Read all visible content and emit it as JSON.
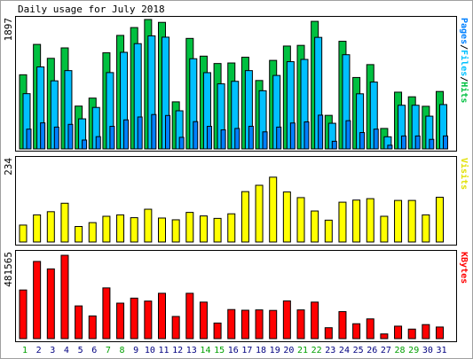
{
  "chart_data": [
    {
      "type": "bar",
      "title": "Daily usage for July 2018",
      "ylabel": "Pages/Files/Hits",
      "ylabel_parts": [
        "Pages",
        "/",
        "Files",
        "/",
        "Hits"
      ],
      "y_max_label": "1897",
      "ylim": [
        0,
        1897
      ],
      "categories": [
        "1",
        "2",
        "3",
        "4",
        "5",
        "6",
        "7",
        "8",
        "9",
        "10",
        "11",
        "12",
        "13",
        "14",
        "15",
        "16",
        "17",
        "18",
        "19",
        "20",
        "21",
        "22",
        "23",
        "24",
        "25",
        "26",
        "27",
        "28",
        "29",
        "30",
        "31"
      ],
      "series": [
        {
          "name": "Hits",
          "color": "#00c040",
          "values": [
            1087,
            1532,
            1328,
            1481,
            628,
            745,
            1409,
            1664,
            1779,
            1897,
            1855,
            690,
            1620,
            1360,
            1252,
            1260,
            1344,
            1003,
            1298,
            1508,
            1518,
            1870,
            492,
            1578,
            1047,
            1236,
            300,
            832,
            764,
            625,
            842
          ]
        },
        {
          "name": "Files",
          "color": "#00c0ff",
          "values": [
            810,
            1202,
            998,
            1148,
            441,
            608,
            1119,
            1416,
            1543,
            1657,
            1638,
            559,
            1322,
            1118,
            954,
            991,
            1148,
            853,
            1077,
            1279,
            1312,
            1635,
            376,
            1381,
            808,
            980,
            178,
            640,
            640,
            480,
            650
          ]
        },
        {
          "name": "Pages",
          "color": "#0080ff",
          "values": [
            290,
            382,
            320,
            360,
            130,
            180,
            331,
            426,
            468,
            504,
            490,
            170,
            400,
            331,
            280,
            300,
            332,
            250,
            320,
            380,
            396,
            495,
            112,
            414,
            240,
            290,
            54,
            190,
            190,
            140,
            190
          ]
        }
      ]
    },
    {
      "type": "bar",
      "ylabel": "Visits",
      "y_max_label": "234",
      "ylim": [
        0,
        234
      ],
      "categories": [
        "1",
        "2",
        "3",
        "4",
        "5",
        "6",
        "7",
        "8",
        "9",
        "10",
        "11",
        "12",
        "13",
        "14",
        "15",
        "16",
        "17",
        "18",
        "19",
        "20",
        "21",
        "22",
        "23",
        "24",
        "25",
        "26",
        "27",
        "28",
        "29",
        "30",
        "31"
      ],
      "series": [
        {
          "name": "Visits",
          "color": "#ffff00",
          "values": [
            48,
            77,
            86,
            110,
            44,
            55,
            73,
            77,
            69,
            93,
            68,
            63,
            84,
            74,
            67,
            80,
            143,
            161,
            184,
            142,
            126,
            88,
            62,
            113,
            119,
            123,
            73,
            118,
            118,
            77,
            127
          ]
        }
      ]
    },
    {
      "type": "bar",
      "ylabel": "KBytes",
      "y_max_label": "481565",
      "ylim": [
        0,
        481565
      ],
      "categories": [
        "1",
        "2",
        "3",
        "4",
        "5",
        "6",
        "7",
        "8",
        "9",
        "10",
        "11",
        "12",
        "13",
        "14",
        "15",
        "16",
        "17",
        "18",
        "19",
        "20",
        "21",
        "22",
        "23",
        "24",
        "25",
        "26",
        "27",
        "28",
        "29",
        "30",
        "31"
      ],
      "series": [
        {
          "name": "KBytes",
          "color": "#ff0000",
          "values": [
            281000,
            446000,
            403000,
            481565,
            189000,
            131000,
            293000,
            205000,
            234000,
            217000,
            262000,
            128000,
            262000,
            211000,
            90000,
            168000,
            164000,
            166000,
            163000,
            218000,
            166000,
            211000,
            63000,
            156000,
            86000,
            114000,
            27000,
            72000,
            55000,
            81000,
            67000
          ]
        }
      ]
    }
  ],
  "weekend_days": [
    "1",
    "7",
    "8",
    "14",
    "15",
    "21",
    "22",
    "28",
    "29"
  ],
  "colors": {
    "background": "#ffffff",
    "panel_bg": "#ffffff",
    "border": "#000000",
    "weekday_label": "#000080",
    "weekend_label": "#00a000"
  }
}
